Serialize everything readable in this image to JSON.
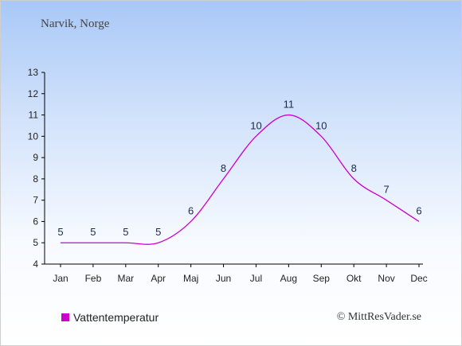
{
  "location": "Narvik, Norge",
  "legend": {
    "label": "Vattentemperatur",
    "color": "#cc00cc"
  },
  "copyright": "© MittResVader.se",
  "chart_data": {
    "type": "line",
    "categories": [
      "Jan",
      "Feb",
      "Mar",
      "Apr",
      "Maj",
      "Jun",
      "Jul",
      "Aug",
      "Sep",
      "Okt",
      "Nov",
      "Dec"
    ],
    "series": [
      {
        "name": "Vattentemperatur",
        "values": [
          5,
          5,
          5,
          5,
          6,
          8,
          10,
          11,
          10,
          8,
          7,
          6
        ],
        "color": "#cc00cc"
      }
    ],
    "ylim": [
      4,
      13
    ],
    "yticks": [
      4,
      5,
      6,
      7,
      8,
      9,
      10,
      11,
      12,
      13
    ],
    "grid": false,
    "legend_position": "bottom-left"
  }
}
